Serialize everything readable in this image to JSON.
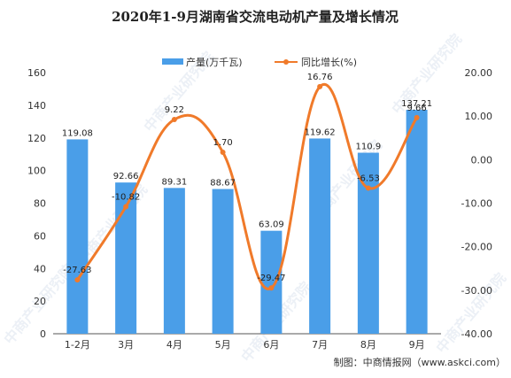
{
  "chart_data": {
    "type": "bar",
    "title": "2020年1-9月湖南省交流电动机产量及增长情况",
    "categories": [
      "1-2月",
      "3月",
      "4月",
      "5月",
      "6月",
      "7月",
      "8月",
      "9月"
    ],
    "series": [
      {
        "name": "产量(万千瓦)",
        "type": "bar",
        "axis": "left",
        "values": [
          119.08,
          92.66,
          89.31,
          88.67,
          63.09,
          119.62,
          110.9,
          137.21
        ],
        "labels": [
          "119.08",
          "92.66",
          "89.31",
          "88.67",
          "63.09",
          "119.62",
          "110.9",
          "137.21"
        ],
        "color": "#4a9ee8"
      },
      {
        "name": "同比增长(%)",
        "type": "line",
        "axis": "right",
        "values": [
          -27.63,
          -10.82,
          9.22,
          1.7,
          -29.47,
          16.76,
          -6.53,
          9.66
        ],
        "labels": [
          "-27.63",
          "-10.82",
          "9.22",
          "1.70",
          "-29.47",
          "16.76",
          "-6.53",
          "9.66"
        ],
        "color": "#f07a2a"
      }
    ],
    "y_left": {
      "min": 0,
      "max": 160,
      "step": 20,
      "tick_labels": [
        "0",
        "20",
        "40",
        "60",
        "80",
        "100",
        "120",
        "140",
        "160"
      ]
    },
    "y_right": {
      "min": -40,
      "max": 20,
      "step": 10,
      "tick_labels": [
        "-40.00",
        "-30.00",
        "-20.00",
        "-10.00",
        "0.00",
        "10.00",
        "20.00"
      ]
    },
    "legend_position": "top-center",
    "grid": false
  },
  "source": "制图：中商情报网（www.askci.com）",
  "watermark": "中商产业研究院"
}
